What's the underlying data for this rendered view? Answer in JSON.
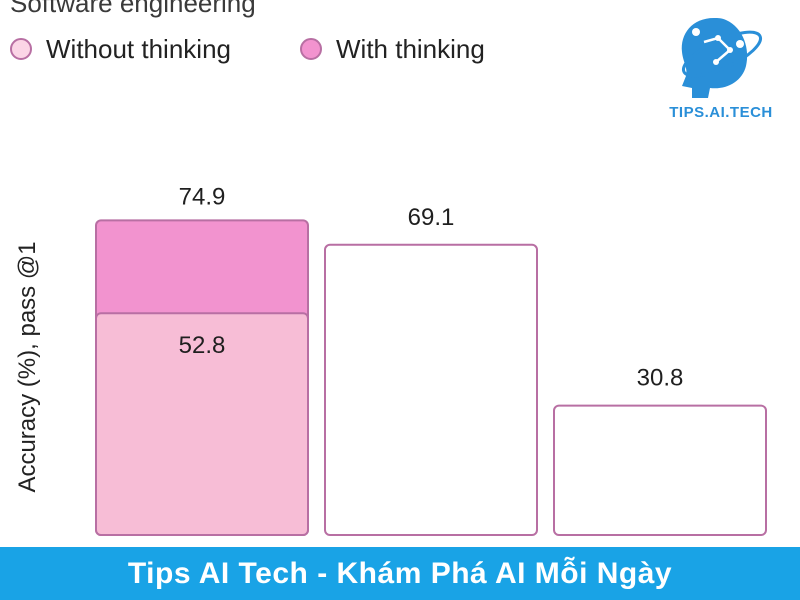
{
  "header": {
    "section_title": "Software engineering"
  },
  "chart_data": {
    "type": "bar",
    "categories": [
      "",
      "",
      ""
    ],
    "series": [
      {
        "name": "Without thinking",
        "values": [
          52.8,
          69.1,
          30.8
        ]
      },
      {
        "name": "With thinking",
        "values": [
          74.9,
          null,
          null
        ]
      }
    ],
    "data_labels": {
      "without": [
        "52.8",
        "69.1",
        "30.8"
      ],
      "with": [
        "74.9",
        "",
        ""
      ]
    },
    "title": "",
    "xlabel": "",
    "ylabel": "Accuracy (%), pass @1",
    "ylim": [
      0,
      100
    ],
    "legend": "top-left",
    "grid": false,
    "colors": {
      "without_first": "#f7bdd6",
      "without_rest": "#ffffff",
      "with": "#f293cf",
      "border": "#b86fa3"
    }
  },
  "legend": {
    "items": [
      {
        "label": "Without thinking",
        "color": "#fbd5e6"
      },
      {
        "label": "With thinking",
        "color": "#f293cf"
      }
    ]
  },
  "logo": {
    "text": "TIPS.AI.TECH",
    "icon": "ai-head-icon",
    "color": "#2a8fd8"
  },
  "banner": {
    "text": "Tips AI Tech - Khám Phá AI Mỗi Ngày",
    "color": "#19a3e6"
  }
}
